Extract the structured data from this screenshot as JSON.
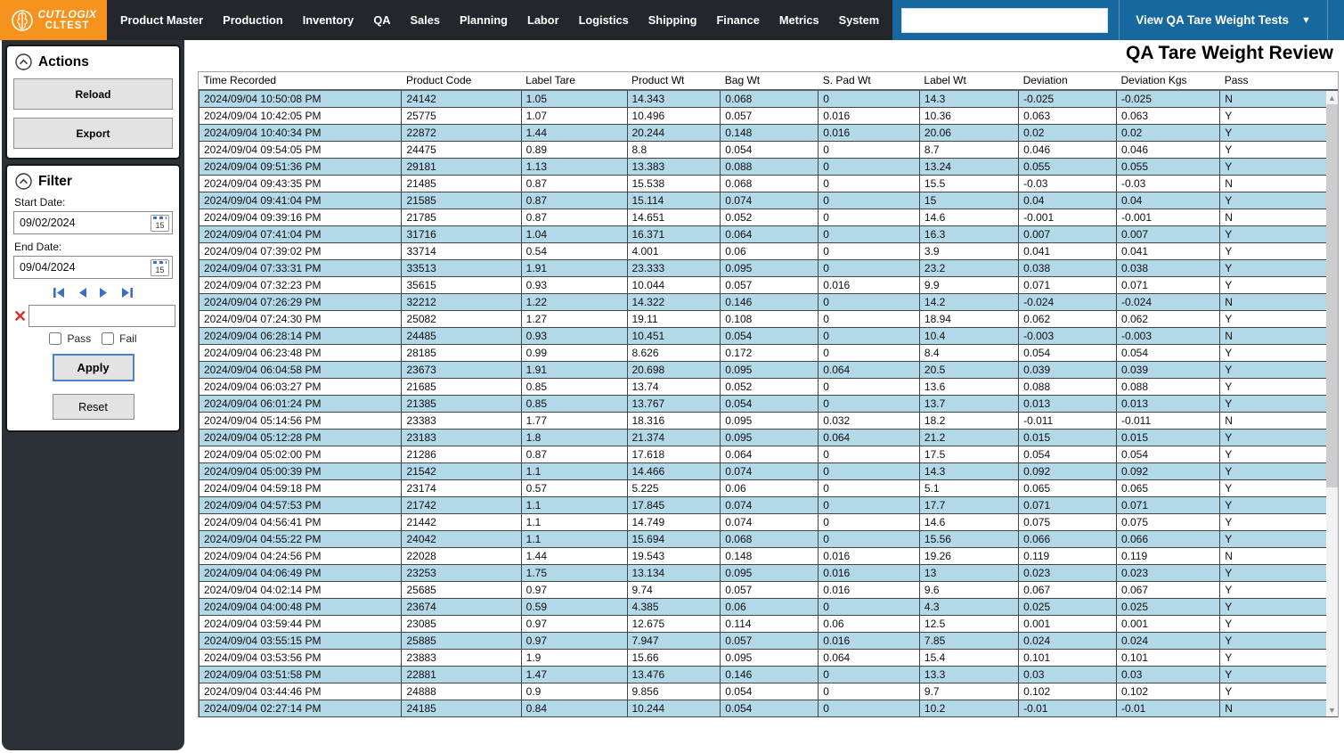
{
  "brand": {
    "logo_line1": "CUTLOGIX",
    "logo_line2": "CLTEST"
  },
  "nav": {
    "items": [
      "Product Master",
      "Production",
      "Inventory",
      "QA",
      "Sales",
      "Planning",
      "Labor",
      "Logistics",
      "Shipping",
      "Finance",
      "Metrics",
      "System"
    ],
    "search_value": "",
    "view_selector_label": "View QA Tare Weight Tests",
    "caret": "▼",
    "back_arrow": "←",
    "forward_arrow": "→",
    "close_glyph": "✕"
  },
  "actions_panel": {
    "title": "Actions",
    "reload_label": "Reload",
    "export_label": "Export"
  },
  "filter_panel": {
    "title": "Filter",
    "start_date_label": "Start Date:",
    "start_date_value": "09/02/2024",
    "end_date_label": "End Date:",
    "end_date_value": "09/04/2024",
    "calendar_day": "15",
    "clear_glyph": "✕",
    "filter_text_value": "",
    "pass_label": "Pass",
    "fail_label": "Fail",
    "apply_label": "Apply",
    "reset_label": "Reset"
  },
  "main": {
    "title": "QA Tare Weight Review"
  },
  "colors": {
    "accent_orange": "#f6921e",
    "toolbar_blue": "#17689e",
    "row_blue": "#b3d8e7",
    "sidebar_dark": "#2b3137"
  },
  "table": {
    "columns": [
      "Time Recorded",
      "Product Code",
      "Label Tare",
      "Product Wt",
      "Bag Wt",
      "S. Pad Wt",
      "Label Wt",
      "Deviation",
      "Deviation Kgs",
      "Pass"
    ],
    "rows": [
      [
        "2024/09/04 10:50:08 PM",
        "24142",
        "1.05",
        "14.343",
        "0.068",
        "0",
        "14.3",
        "-0.025",
        "-0.025",
        "N"
      ],
      [
        "2024/09/04 10:42:05 PM",
        "25775",
        "1.07",
        "10.496",
        "0.057",
        "0.016",
        "10.36",
        "0.063",
        "0.063",
        "Y"
      ],
      [
        "2024/09/04 10:40:34 PM",
        "22872",
        "1.44",
        "20.244",
        "0.148",
        "0.016",
        "20.06",
        "0.02",
        "0.02",
        "Y"
      ],
      [
        "2024/09/04 09:54:05 PM",
        "24475",
        "0.89",
        "8.8",
        "0.054",
        "0",
        "8.7",
        "0.046",
        "0.046",
        "Y"
      ],
      [
        "2024/09/04 09:51:36 PM",
        "29181",
        "1.13",
        "13.383",
        "0.088",
        "0",
        "13.24",
        "0.055",
        "0.055",
        "Y"
      ],
      [
        "2024/09/04 09:43:35 PM",
        "21485",
        "0.87",
        "15.538",
        "0.068",
        "0",
        "15.5",
        "-0.03",
        "-0.03",
        "N"
      ],
      [
        "2024/09/04 09:41:04 PM",
        "21585",
        "0.87",
        "15.114",
        "0.074",
        "0",
        "15",
        "0.04",
        "0.04",
        "Y"
      ],
      [
        "2024/09/04 09:39:16 PM",
        "21785",
        "0.87",
        "14.651",
        "0.052",
        "0",
        "14.6",
        "-0.001",
        "-0.001",
        "N"
      ],
      [
        "2024/09/04 07:41:04 PM",
        "31716",
        "1.04",
        "16.371",
        "0.064",
        "0",
        "16.3",
        "0.007",
        "0.007",
        "Y"
      ],
      [
        "2024/09/04 07:39:02 PM",
        "33714",
        "0.54",
        "4.001",
        "0.06",
        "0",
        "3.9",
        "0.041",
        "0.041",
        "Y"
      ],
      [
        "2024/09/04 07:33:31 PM",
        "33513",
        "1.91",
        "23.333",
        "0.095",
        "0",
        "23.2",
        "0.038",
        "0.038",
        "Y"
      ],
      [
        "2024/09/04 07:32:23 PM",
        "35615",
        "0.93",
        "10.044",
        "0.057",
        "0.016",
        "9.9",
        "0.071",
        "0.071",
        "Y"
      ],
      [
        "2024/09/04 07:26:29 PM",
        "32212",
        "1.22",
        "14.322",
        "0.146",
        "0",
        "14.2",
        "-0.024",
        "-0.024",
        "N"
      ],
      [
        "2024/09/04 07:24:30 PM",
        "25082",
        "1.27",
        "19.11",
        "0.108",
        "0",
        "18.94",
        "0.062",
        "0.062",
        "Y"
      ],
      [
        "2024/09/04 06:28:14 PM",
        "24485",
        "0.93",
        "10.451",
        "0.054",
        "0",
        "10.4",
        "-0.003",
        "-0.003",
        "N"
      ],
      [
        "2024/09/04 06:23:48 PM",
        "28185",
        "0.99",
        "8.626",
        "0.172",
        "0",
        "8.4",
        "0.054",
        "0.054",
        "Y"
      ],
      [
        "2024/09/04 06:04:58 PM",
        "23673",
        "1.91",
        "20.698",
        "0.095",
        "0.064",
        "20.5",
        "0.039",
        "0.039",
        "Y"
      ],
      [
        "2024/09/04 06:03:27 PM",
        "21685",
        "0.85",
        "13.74",
        "0.052",
        "0",
        "13.6",
        "0.088",
        "0.088",
        "Y"
      ],
      [
        "2024/09/04 06:01:24 PM",
        "21385",
        "0.85",
        "13.767",
        "0.054",
        "0",
        "13.7",
        "0.013",
        "0.013",
        "Y"
      ],
      [
        "2024/09/04 05:14:56 PM",
        "23383",
        "1.77",
        "18.316",
        "0.095",
        "0.032",
        "18.2",
        "-0.011",
        "-0.011",
        "N"
      ],
      [
        "2024/09/04 05:12:28 PM",
        "23183",
        "1.8",
        "21.374",
        "0.095",
        "0.064",
        "21.2",
        "0.015",
        "0.015",
        "Y"
      ],
      [
        "2024/09/04 05:02:00 PM",
        "21286",
        "0.87",
        "17.618",
        "0.064",
        "0",
        "17.5",
        "0.054",
        "0.054",
        "Y"
      ],
      [
        "2024/09/04 05:00:39 PM",
        "21542",
        "1.1",
        "14.466",
        "0.074",
        "0",
        "14.3",
        "0.092",
        "0.092",
        "Y"
      ],
      [
        "2024/09/04 04:59:18 PM",
        "23174",
        "0.57",
        "5.225",
        "0.06",
        "0",
        "5.1",
        "0.065",
        "0.065",
        "Y"
      ],
      [
        "2024/09/04 04:57:53 PM",
        "21742",
        "1.1",
        "17.845",
        "0.074",
        "0",
        "17.7",
        "0.071",
        "0.071",
        "Y"
      ],
      [
        "2024/09/04 04:56:41 PM",
        "21442",
        "1.1",
        "14.749",
        "0.074",
        "0",
        "14.6",
        "0.075",
        "0.075",
        "Y"
      ],
      [
        "2024/09/04 04:55:22 PM",
        "24042",
        "1.1",
        "15.694",
        "0.068",
        "0",
        "15.56",
        "0.066",
        "0.066",
        "Y"
      ],
      [
        "2024/09/04 04:24:56 PM",
        "22028",
        "1.44",
        "19.543",
        "0.148",
        "0.016",
        "19.26",
        "0.119",
        "0.119",
        "N"
      ],
      [
        "2024/09/04 04:06:49 PM",
        "23253",
        "1.75",
        "13.134",
        "0.095",
        "0.016",
        "13",
        "0.023",
        "0.023",
        "Y"
      ],
      [
        "2024/09/04 04:02:14 PM",
        "25685",
        "0.97",
        "9.74",
        "0.057",
        "0.016",
        "9.6",
        "0.067",
        "0.067",
        "Y"
      ],
      [
        "2024/09/04 04:00:48 PM",
        "23674",
        "0.59",
        "4.385",
        "0.06",
        "0",
        "4.3",
        "0.025",
        "0.025",
        "Y"
      ],
      [
        "2024/09/04 03:59:44 PM",
        "23085",
        "0.97",
        "12.675",
        "0.114",
        "0.06",
        "12.5",
        "0.001",
        "0.001",
        "Y"
      ],
      [
        "2024/09/04 03:55:15 PM",
        "25885",
        "0.97",
        "7.947",
        "0.057",
        "0.016",
        "7.85",
        "0.024",
        "0.024",
        "Y"
      ],
      [
        "2024/09/04 03:53:56 PM",
        "23883",
        "1.9",
        "15.66",
        "0.095",
        "0.064",
        "15.4",
        "0.101",
        "0.101",
        "Y"
      ],
      [
        "2024/09/04 03:51:58 PM",
        "22881",
        "1.47",
        "13.476",
        "0.146",
        "0",
        "13.3",
        "0.03",
        "0.03",
        "Y"
      ],
      [
        "2024/09/04 03:44:46 PM",
        "24888",
        "0.9",
        "9.856",
        "0.054",
        "0",
        "9.7",
        "0.102",
        "0.102",
        "Y"
      ],
      [
        "2024/09/04 02:27:14 PM",
        "24185",
        "0.84",
        "10.244",
        "0.054",
        "0",
        "10.2",
        "-0.01",
        "-0.01",
        "N"
      ]
    ]
  }
}
